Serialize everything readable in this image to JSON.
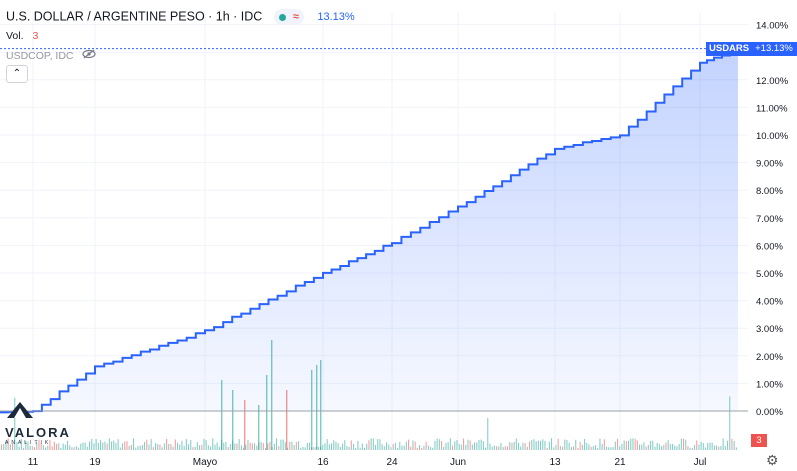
{
  "header": {
    "title": "U.S. DOLLAR / ARGENTINE PESO · 1h · IDC",
    "wave_glyph": "≈",
    "change": "13.13%",
    "vol_label": "Vol.",
    "vol_value": "3",
    "compare_symbol": "USDCOP, IDC",
    "collapse_glyph": "⌃"
  },
  "badges": {
    "symbol": "USDARS",
    "percent": "+13.13%",
    "volume": "3"
  },
  "logo": {
    "name": "VALORA",
    "tagline": "ANALITIK"
  },
  "colors": {
    "line": "#2962ff",
    "up": "#26a69a",
    "down": "#ef5350",
    "fill": "#2962ff"
  },
  "chart_data": {
    "type": "line",
    "series": [
      {
        "name": "USDARS",
        "x": [
          "Apr 11",
          "Apr 19",
          "May 1",
          "May 16",
          "May 24",
          "Jun 1",
          "Jun 13",
          "Jun 21",
          "Jul 1"
        ],
        "values": [
          0.0,
          1.6,
          2.9,
          5.0,
          6.1,
          7.4,
          9.5,
          10.0,
          12.6
        ]
      }
    ],
    "last_value": 13.13,
    "x_ticks": [
      "11",
      "19",
      "Mayo",
      "16",
      "24",
      "Jun",
      "13",
      "21",
      "Jul"
    ],
    "y_ticks": [
      "0.00%",
      "1.00%",
      "2.00%",
      "3.00%",
      "4.00%",
      "5.00%",
      "6.00%",
      "7.00%",
      "8.00%",
      "9.00%",
      "10.00%",
      "11.00%",
      "12.00%",
      "13.00%",
      "14.00%"
    ],
    "ylim": [
      -1,
      14
    ],
    "grid": true,
    "volume": "histogram"
  }
}
